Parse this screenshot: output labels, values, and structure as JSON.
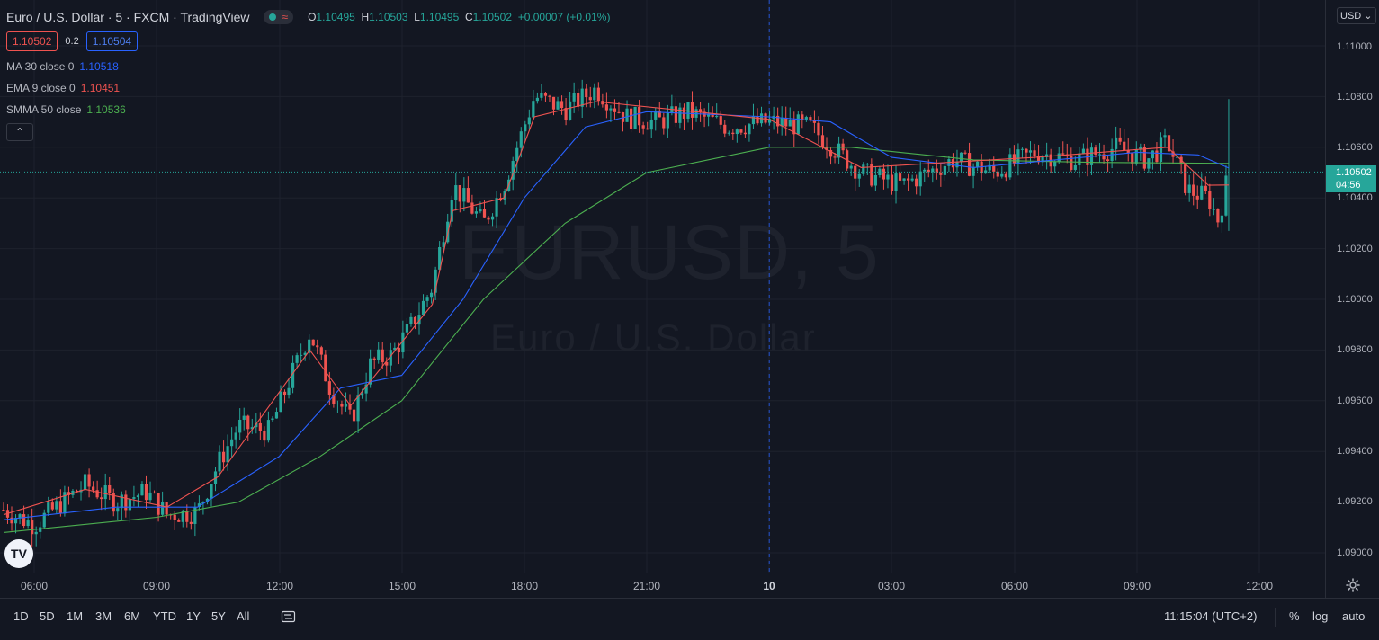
{
  "legend": {
    "symbol_title": "Euro / U.S. Dollar · 5 · FXCM · TradingView",
    "ohlc": {
      "o_label": "O",
      "o": "1.10495",
      "h_label": "H",
      "h": "1.10503",
      "l_label": "L",
      "l": "1.10495",
      "c_label": "C",
      "c": "1.10502",
      "change": "+0.00007 (+0.01%)"
    },
    "bid": "1.10502",
    "spread": "0.2",
    "ask": "1.10504",
    "indicators": [
      {
        "label": "MA 30 close 0",
        "value": "1.10518",
        "color": "#2962ff"
      },
      {
        "label": "EMA 9 close 0",
        "value": "1.10451",
        "color": "#ef5350"
      },
      {
        "label": "SMMA 50 close",
        "value": "1.10536",
        "color": "#4caf50"
      }
    ],
    "collapse_icon": "chevron-up-icon"
  },
  "watermark": {
    "symbol": "EURUSD, 5",
    "description": "Euro / U.S. Dollar"
  },
  "price_scale": {
    "currency": "USD",
    "ticks": [
      "1.11000",
      "1.10800",
      "1.10600",
      "1.10400",
      "1.10200",
      "1.10000",
      "1.09800",
      "1.09600",
      "1.09400",
      "1.09200",
      "1.09000"
    ],
    "last_price": "1.10502",
    "countdown": "04:56"
  },
  "time_axis": {
    "ticks": [
      "06:00",
      "09:00",
      "12:00",
      "15:00",
      "18:00",
      "21:00",
      "10",
      "03:00",
      "06:00",
      "09:00",
      "12:00"
    ]
  },
  "bottom_bar": {
    "ranges": [
      "1D",
      "5D",
      "1M",
      "3M",
      "6M",
      "YTD",
      "1Y",
      "5Y",
      "All"
    ],
    "clock": "11:15:04 (UTC+2)",
    "percent": "%",
    "log": "log",
    "auto": "auto"
  },
  "colors": {
    "up": "#26a69a",
    "down": "#ef5350",
    "ma": "#2962ff",
    "ema": "#ef5350",
    "smma": "#4caf50",
    "background": "#131722"
  },
  "chart_data": {
    "type": "candlestick",
    "interval": "5 minutes",
    "y_range": [
      1.0895,
      1.1115
    ],
    "x_range": [
      "2023-01-09 05:30",
      "2023-01-10 12:40"
    ],
    "path_points": [
      [
        "2023-01-09 05:15",
        1.0917
      ],
      [
        "2023-01-09 06:00",
        1.0911
      ],
      [
        "2023-01-09 07:15",
        1.0927
      ],
      [
        "2023-01-09 08:00",
        1.092
      ],
      [
        "2023-01-09 08:45",
        1.0924
      ],
      [
        "2023-01-09 09:15",
        1.0915
      ],
      [
        "2023-01-09 10:00",
        1.0916
      ],
      [
        "2023-01-09 10:30",
        1.0935
      ],
      [
        "2023-01-09 11:00",
        1.095
      ],
      [
        "2023-01-09 11:45",
        1.0948
      ],
      [
        "2023-01-09 12:15",
        1.0968
      ],
      [
        "2023-01-09 12:45",
        1.0987
      ],
      [
        "2023-01-09 13:15",
        1.0965
      ],
      [
        "2023-01-09 13:45",
        1.0952
      ],
      [
        "2023-01-09 14:15",
        1.0975
      ],
      [
        "2023-01-09 14:45",
        1.0978
      ],
      [
        "2023-01-09 15:15",
        1.099
      ],
      [
        "2023-01-09 15:45",
        1.1005
      ],
      [
        "2023-01-09 16:15",
        1.1045
      ],
      [
        "2023-01-09 17:00",
        1.103
      ],
      [
        "2023-01-09 17:30",
        1.1045
      ],
      [
        "2023-01-09 18:15",
        1.108
      ],
      [
        "2023-01-09 19:00",
        1.1075
      ],
      [
        "2023-01-09 19:45",
        1.1083
      ],
      [
        "2023-01-09 20:30",
        1.1072
      ],
      [
        "2023-01-09 21:15",
        1.107
      ],
      [
        "2023-01-09 22:00",
        1.1074
      ],
      [
        "2023-01-09 23:00",
        1.1068
      ],
      [
        "2023-01-10 00:00",
        1.107
      ],
      [
        "2023-01-10 01:00",
        1.1068
      ],
      [
        "2023-01-10 02:15",
        1.105
      ],
      [
        "2023-01-10 03:15",
        1.1045
      ],
      [
        "2023-01-10 04:30",
        1.1055
      ],
      [
        "2023-01-10 05:30",
        1.105
      ],
      [
        "2023-01-10 06:30",
        1.1058
      ],
      [
        "2023-01-10 07:30",
        1.1055
      ],
      [
        "2023-01-10 08:30",
        1.106
      ],
      [
        "2023-01-10 09:15",
        1.1055
      ],
      [
        "2023-01-10 09:45",
        1.1062
      ],
      [
        "2023-01-10 10:15",
        1.1043
      ],
      [
        "2023-01-10 10:45",
        1.104
      ],
      [
        "2023-01-10 11:00",
        1.1031
      ],
      [
        "2023-01-10 11:15",
        1.10502
      ]
    ],
    "ma30": [
      [
        "2023-01-09 05:15",
        1.0913
      ],
      [
        "2023-01-09 08:00",
        1.0918
      ],
      [
        "2023-01-09 10:00",
        1.0918
      ],
      [
        "2023-01-09 12:00",
        1.0938
      ],
      [
        "2023-01-09 13:30",
        1.0965
      ],
      [
        "2023-01-09 15:00",
        1.097
      ],
      [
        "2023-01-09 16:30",
        1.1
      ],
      [
        "2023-01-09 18:00",
        1.104
      ],
      [
        "2023-01-09 19:30",
        1.1068
      ],
      [
        "2023-01-09 21:00",
        1.1074
      ],
      [
        "2023-01-10 00:00",
        1.1072
      ],
      [
        "2023-01-10 01:30",
        1.107
      ],
      [
        "2023-01-10 03:00",
        1.1056
      ],
      [
        "2023-01-10 05:00",
        1.1052
      ],
      [
        "2023-01-10 07:00",
        1.1055
      ],
      [
        "2023-01-10 09:00",
        1.1058
      ],
      [
        "2023-01-10 10:30",
        1.1057
      ],
      [
        "2023-01-10 11:15",
        1.10518
      ]
    ],
    "ema9": [
      [
        "2023-01-09 05:15",
        1.0915
      ],
      [
        "2023-01-09 07:15",
        1.0925
      ],
      [
        "2023-01-09 09:15",
        1.0918
      ],
      [
        "2023-01-09 10:30",
        1.093
      ],
      [
        "2023-01-09 12:45",
        1.098
      ],
      [
        "2023-01-09 13:45",
        1.0958
      ],
      [
        "2023-01-09 15:45",
        1.0998
      ],
      [
        "2023-01-09 16:15",
        1.1035
      ],
      [
        "2023-01-09 17:30",
        1.104
      ],
      [
        "2023-01-09 18:15",
        1.1072
      ],
      [
        "2023-01-09 19:45",
        1.1078
      ],
      [
        "2023-01-10 00:00",
        1.1071
      ],
      [
        "2023-01-10 02:15",
        1.1052
      ],
      [
        "2023-01-10 06:30",
        1.1056
      ],
      [
        "2023-01-10 09:45",
        1.106
      ],
      [
        "2023-01-10 10:45",
        1.1045
      ],
      [
        "2023-01-10 11:15",
        1.10451
      ]
    ],
    "smma50": [
      [
        "2023-01-09 05:15",
        1.0908
      ],
      [
        "2023-01-09 09:00",
        1.0914
      ],
      [
        "2023-01-09 11:00",
        1.092
      ],
      [
        "2023-01-09 13:00",
        1.0938
      ],
      [
        "2023-01-09 15:00",
        1.096
      ],
      [
        "2023-01-09 17:00",
        1.1
      ],
      [
        "2023-01-09 19:00",
        1.103
      ],
      [
        "2023-01-09 21:00",
        1.105
      ],
      [
        "2023-01-10 00:00",
        1.106
      ],
      [
        "2023-01-10 02:00",
        1.106
      ],
      [
        "2023-01-10 05:00",
        1.1055
      ],
      [
        "2023-01-10 08:00",
        1.1054
      ],
      [
        "2023-01-10 11:15",
        1.10536
      ]
    ],
    "last_price": 1.10502,
    "session_break": "2023-01-10 00:00"
  }
}
